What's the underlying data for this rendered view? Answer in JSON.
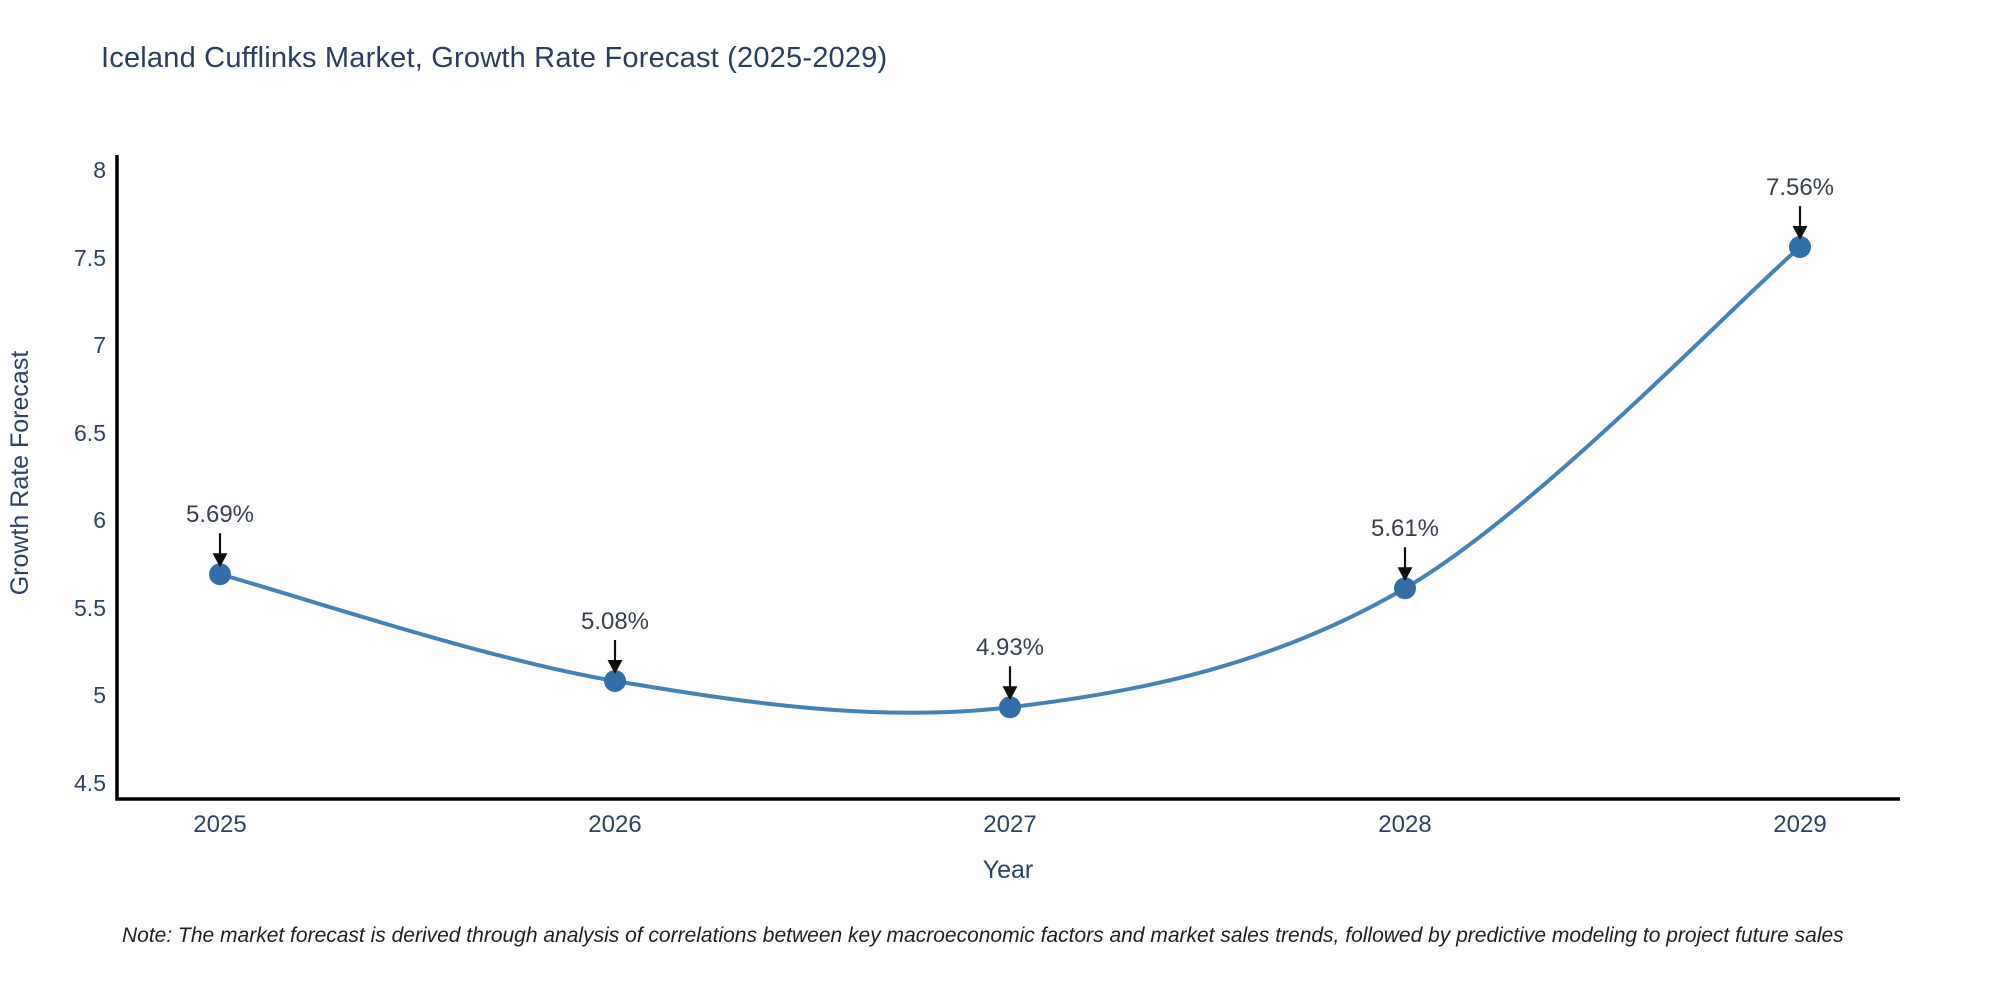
{
  "chart_data": {
    "type": "line",
    "title": "Iceland Cufflinks Market, Growth Rate Forecast (2025-2029)",
    "categories": [
      "2025",
      "2026",
      "2027",
      "2028",
      "2029"
    ],
    "x": [
      2025,
      2026,
      2027,
      2028,
      2029
    ],
    "series": [
      {
        "name": "Growth Rate Forecast",
        "values": [
          5.69,
          5.08,
          4.93,
          5.61,
          7.56
        ]
      }
    ],
    "point_labels": [
      "5.69%",
      "5.08%",
      "4.93%",
      "5.61%",
      "7.56%"
    ],
    "xlabel": "Year",
    "ylabel": "Growth Rate Forecast",
    "ylim": [
      4.41,
      8.09
    ],
    "yticks": [
      "8",
      "7.5",
      "7",
      "6.5",
      "6",
      "5.5",
      "5",
      "4.5"
    ],
    "ytick_values": [
      8,
      7.5,
      7,
      6.5,
      6,
      5.5,
      5,
      4.5
    ],
    "line_shape": "spline",
    "grid": false,
    "legend_position": "none",
    "colors": {
      "line": "#4383ba",
      "marker": "#326fa8",
      "axis": "#000000",
      "title_text": "#2c3e5d",
      "tick_text": "#2f4262",
      "annotation_arrow": "#111111"
    }
  },
  "footnote": "Note: The market forecast is derived through analysis of correlations between key macroeconomic factors and market sales trends, followed by predictive modeling to project future sales"
}
